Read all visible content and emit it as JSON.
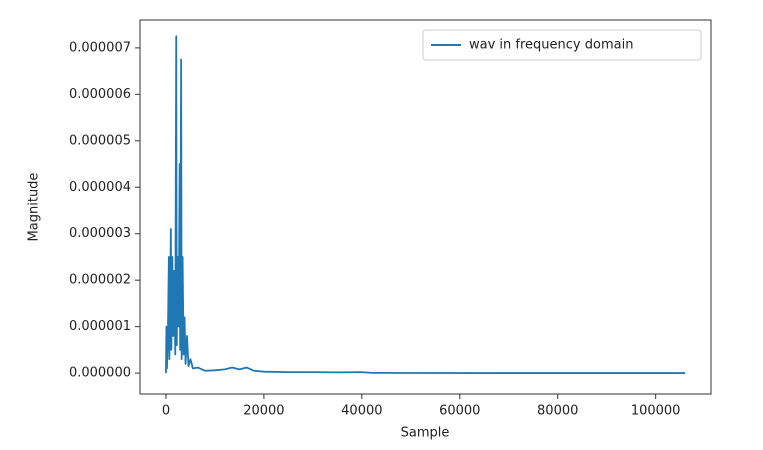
{
  "chart_data": {
    "type": "line",
    "xlabel": "Sample",
    "ylabel": "Magnitude",
    "x": [
      0,
      100,
      200,
      400,
      600,
      700,
      900,
      1000,
      1100,
      1300,
      1500,
      1700,
      1900,
      2100,
      2200,
      2400,
      2600,
      2800,
      2900,
      3100,
      3200,
      3400,
      3600,
      3800,
      4000,
      4300,
      4600,
      5000,
      5500,
      6500,
      8000,
      10000,
      12000,
      13500,
      15000,
      16500,
      18000,
      20000,
      25000,
      30000,
      35000,
      40000,
      42000,
      50000,
      70000,
      90000,
      106000
    ],
    "series": [
      {
        "name": "wav in frequency domain",
        "color": "#1f77b4",
        "values": [
          0,
          1e-06,
          1e-07,
          8e-07,
          2.5e-06,
          3e-07,
          2e-06,
          3.1e-06,
          5e-07,
          2.5e-06,
          8e-07,
          2.2e-06,
          4e-07,
          7.25e-06,
          6e-07,
          2.5e-06,
          1e-06,
          4.5e-06,
          5e-07,
          6.75e-06,
          3e-07,
          2.5e-06,
          4e-07,
          1.2e-06,
          2e-07,
          8e-07,
          1.5e-07,
          3e-07,
          1e-07,
          1.2e-07,
          5e-08,
          6e-08,
          8e-08,
          1.2e-07,
          8e-08,
          1.2e-07,
          5e-08,
          3e-08,
          2e-08,
          2e-08,
          1.5e-08,
          2e-08,
          5e-09,
          2e-09,
          1e-09,
          1e-09,
          1e-09
        ]
      }
    ],
    "xlim": [
      -5300,
      111300
    ],
    "ylim": [
      -4.5e-07,
      7.6e-06
    ],
    "xticks": [
      0,
      20000,
      40000,
      60000,
      80000,
      100000
    ],
    "yticks": [
      {
        "value": 0,
        "label": "0.000000"
      },
      {
        "value": 1e-06,
        "label": "0.000001"
      },
      {
        "value": 2e-06,
        "label": "0.000002"
      },
      {
        "value": 3e-06,
        "label": "0.000003"
      },
      {
        "value": 4e-06,
        "label": "0.000004"
      },
      {
        "value": 5e-06,
        "label": "0.000005"
      },
      {
        "value": 6e-06,
        "label": "0.000006"
      },
      {
        "value": 7e-06,
        "label": "0.000007"
      }
    ],
    "legend": "upper right"
  }
}
